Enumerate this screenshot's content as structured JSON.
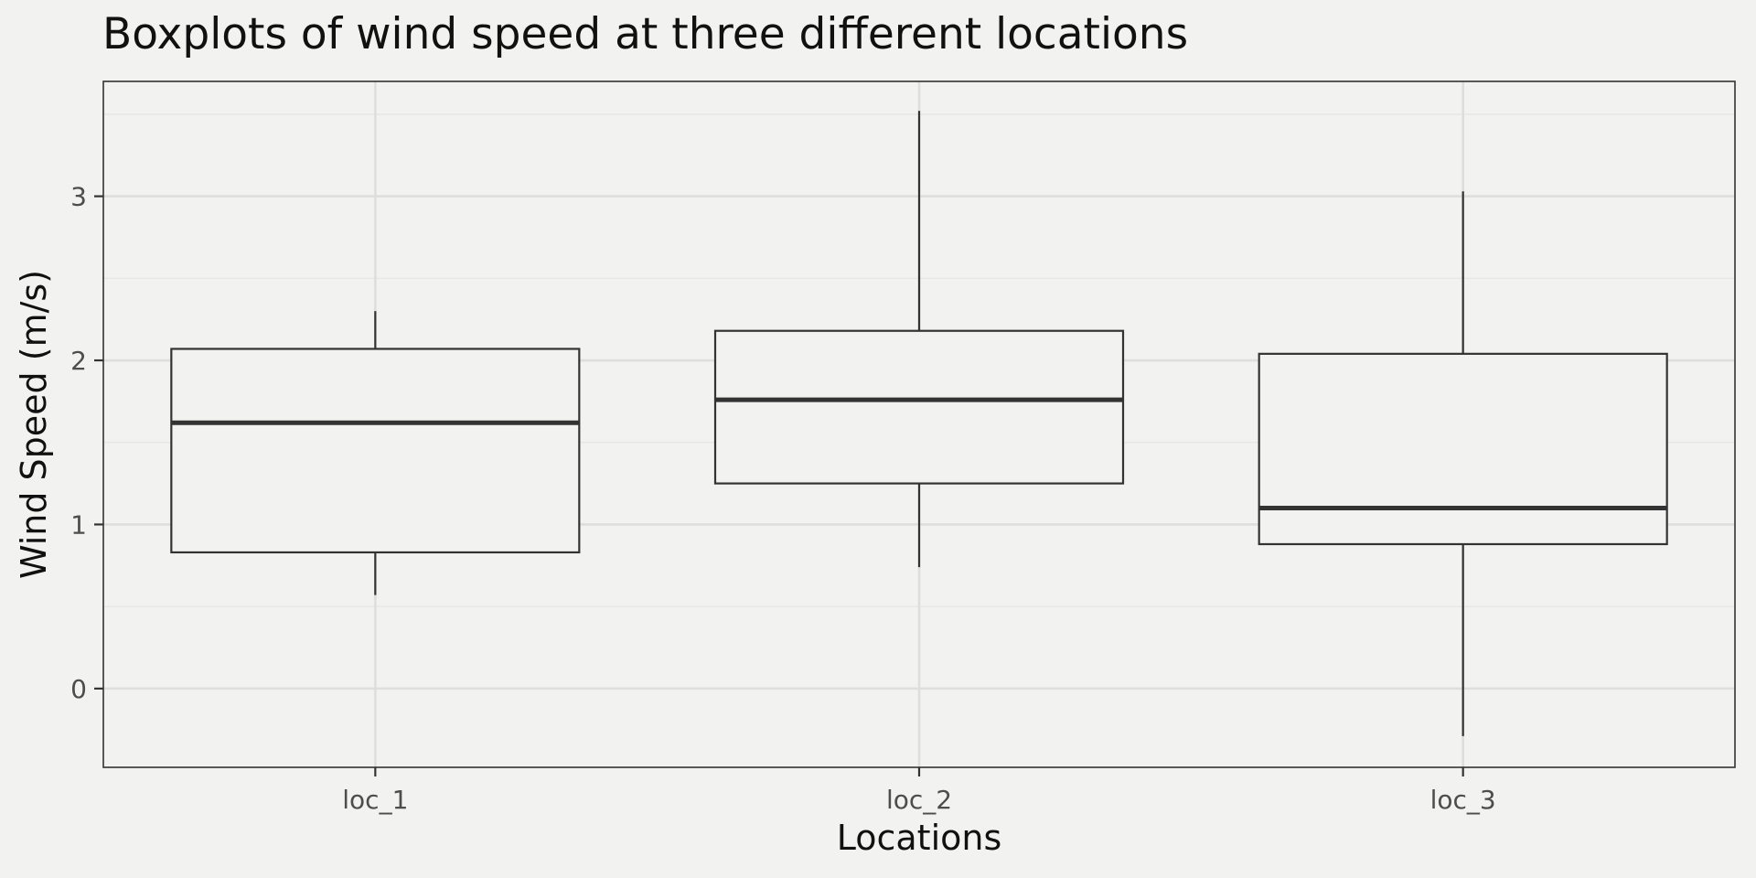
{
  "chart_data": {
    "type": "boxplot",
    "title": "Boxplots of wind speed at three different locations",
    "xlabel": "Locations",
    "ylabel": "Wind Speed (m/s)",
    "categories": [
      "loc_1",
      "loc_2",
      "loc_3"
    ],
    "ylim": [
      -0.48,
      3.7
    ],
    "yticks": [
      0,
      1,
      2,
      3
    ],
    "y_minor_ticks": [
      0.5,
      1.5,
      2.5,
      3.5
    ],
    "grid": true,
    "boxes": [
      {
        "category": "loc_1",
        "whisker_low": 0.57,
        "q1": 0.83,
        "median": 1.62,
        "q3": 2.07,
        "whisker_high": 2.3
      },
      {
        "category": "loc_2",
        "whisker_low": 0.74,
        "q1": 1.25,
        "median": 1.76,
        "q3": 2.18,
        "whisker_high": 3.52
      },
      {
        "category": "loc_3",
        "whisker_low": -0.29,
        "q1": 0.88,
        "median": 1.1,
        "q3": 2.04,
        "whisker_high": 3.03
      }
    ],
    "colors": {
      "background": "#f2f2f0",
      "panel_border": "#333333",
      "grid_major": "#dedede",
      "grid_minor": "#e6e6e4",
      "box_stroke": "#333333",
      "box_fill": "#f2f2f0"
    }
  }
}
